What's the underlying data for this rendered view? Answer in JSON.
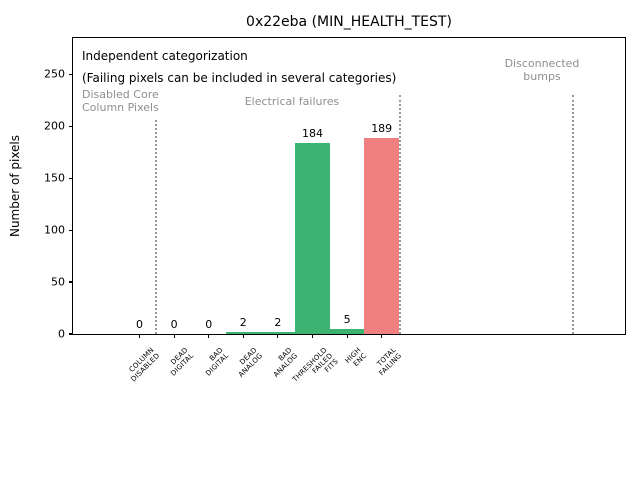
{
  "title": "0x22eba (MIN_HEALTH_TEST)",
  "ylabel": "Number of pixels",
  "annotations": {
    "independent_line1": "Independent categorization",
    "independent_line2": "(Failing pixels can be included in several categories)",
    "disabled_core_line1": "Disabled Core",
    "disabled_core_line2": "Column Pixels",
    "electrical": "Electrical failures",
    "disconnected_line1": "Disconnected",
    "disconnected_line2": "bumps"
  },
  "chart_data": {
    "type": "bar",
    "title": "0x22eba (MIN_HEALTH_TEST)",
    "xlabel": "",
    "ylabel": "Number of pixels",
    "categories": [
      [
        "COLUMN",
        "DISABLED"
      ],
      [
        "DEAD",
        "DIGITAL"
      ],
      [
        "BAD",
        "DIGITAL"
      ],
      [
        "DEAD",
        "ANALOG"
      ],
      [
        "BAD",
        "ANALOG"
      ],
      [
        "THRESHOLD",
        "FAILED",
        "FITS"
      ],
      [
        "HIGH",
        "ENC"
      ],
      [
        "TOTAL",
        "FAILING"
      ]
    ],
    "values": [
      0,
      0,
      0,
      2,
      2,
      184,
      5,
      189
    ],
    "value_labels": [
      "0",
      "0",
      "0",
      "2",
      "2",
      "184",
      "5",
      "189"
    ],
    "bar_colors": [
      "#3cb371",
      "#3cb371",
      "#3cb371",
      "#3cb371",
      "#3cb371",
      "#3cb371",
      "#3cb371",
      "#f08080"
    ],
    "yticks": [
      0,
      50,
      100,
      150,
      200,
      250
    ],
    "ylim": [
      0,
      285
    ],
    "grid": false,
    "legend": null,
    "section_dividers": [
      "after COLUMN DISABLED",
      "after TOTAL FAILING",
      "right edge of empty Disconnected-bumps region"
    ],
    "colors": {
      "green": "#3cb371",
      "red": "#f08080",
      "gray_text": "#8f8f8f",
      "divider": "#999999"
    }
  }
}
